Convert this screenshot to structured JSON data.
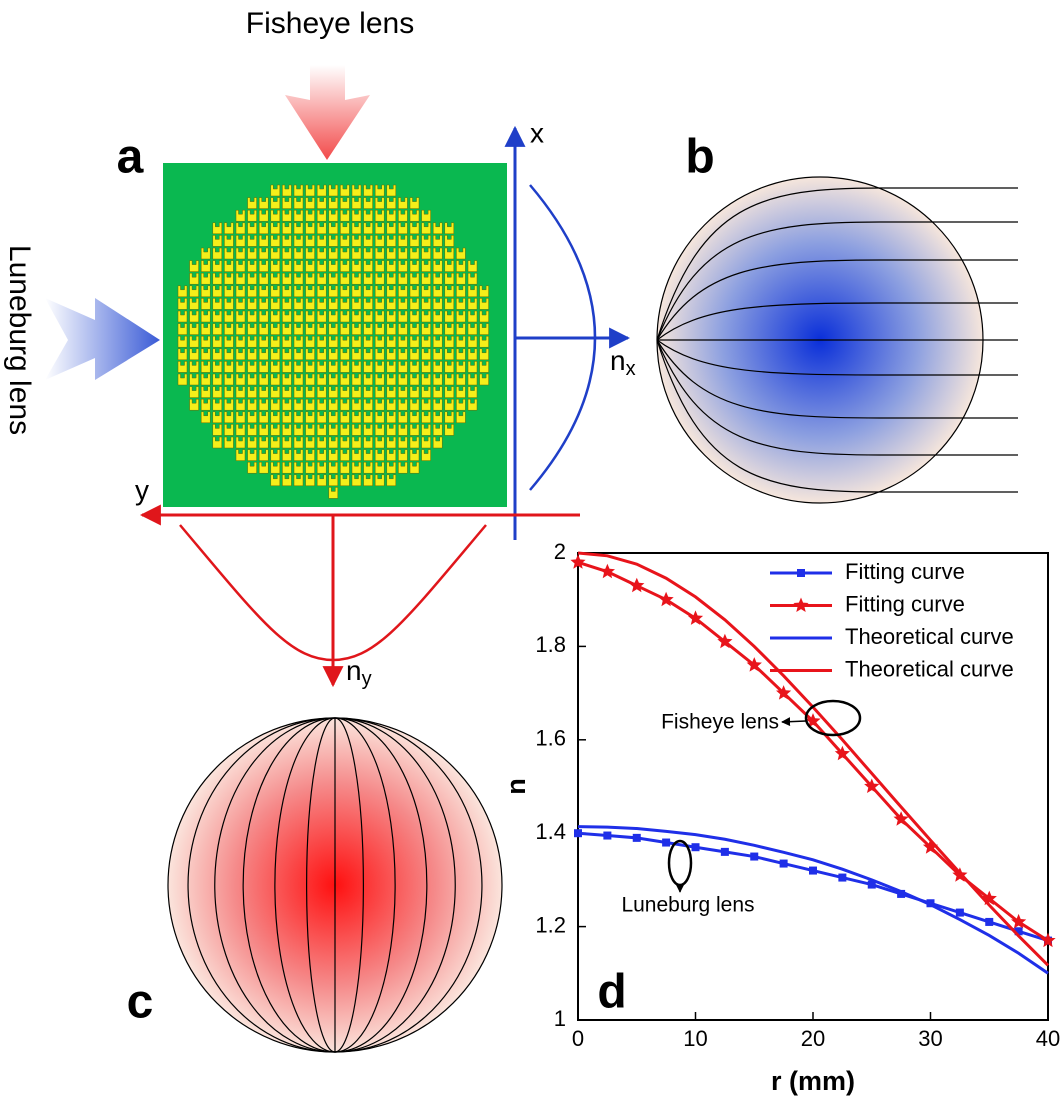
{
  "panels": [
    "a",
    "b",
    "c"
  ],
  "labels": {
    "fisheye_lens": "Fisheye lens",
    "luneburg_lens": "Luneburg lens",
    "x_axis": "x",
    "y_axis": "y",
    "nx": {
      "base": "n",
      "sub": "x"
    },
    "ny": {
      "base": "n",
      "sub": "y"
    }
  },
  "chart_data": {
    "type": "line",
    "panel_label": "d",
    "xlabel": "r (mm)",
    "ylabel": "n",
    "xlim": [
      0,
      40
    ],
    "ylim": [
      1,
      2
    ],
    "xticks": [
      0,
      10,
      20,
      30,
      40
    ],
    "yticks": [
      1,
      1.2,
      1.4,
      1.6,
      1.8,
      2
    ],
    "legend": "upper right",
    "x": [
      0,
      2.5,
      5,
      7.5,
      10,
      12.5,
      15,
      17.5,
      20,
      22.5,
      25,
      27.5,
      30,
      32.5,
      35,
      37.5,
      40
    ],
    "series": [
      {
        "name": "Fitting curve",
        "color": "#1f2fe8",
        "marker": "square",
        "values": [
          1.4,
          1.395,
          1.39,
          1.38,
          1.37,
          1.36,
          1.35,
          1.335,
          1.32,
          1.305,
          1.29,
          1.27,
          1.25,
          1.23,
          1.21,
          1.19,
          1.17
        ]
      },
      {
        "name": "Fitting curve",
        "color": "#e8141b",
        "marker": "star",
        "values": [
          1.98,
          1.96,
          1.93,
          1.9,
          1.86,
          1.81,
          1.76,
          1.7,
          1.64,
          1.57,
          1.5,
          1.43,
          1.37,
          1.31,
          1.26,
          1.21,
          1.17
        ]
      },
      {
        "name": "Theoretical curve",
        "color": "#1f2fe8",
        "marker": "none",
        "values": [
          1.414,
          1.413,
          1.41,
          1.404,
          1.397,
          1.387,
          1.374,
          1.359,
          1.343,
          1.323,
          1.3,
          1.275,
          1.247,
          1.215,
          1.181,
          1.143,
          1.1
        ]
      },
      {
        "name": "Theoretical curve",
        "color": "#e8141b",
        "marker": "none",
        "values": [
          2,
          1.994,
          1.976,
          1.946,
          1.906,
          1.857,
          1.8,
          1.737,
          1.67,
          1.6,
          1.528,
          1.456,
          1.385,
          1.315,
          1.246,
          1.18,
          1.117
        ]
      }
    ],
    "annotations": [
      "Fisheye lens",
      "Luneburg lens"
    ]
  }
}
